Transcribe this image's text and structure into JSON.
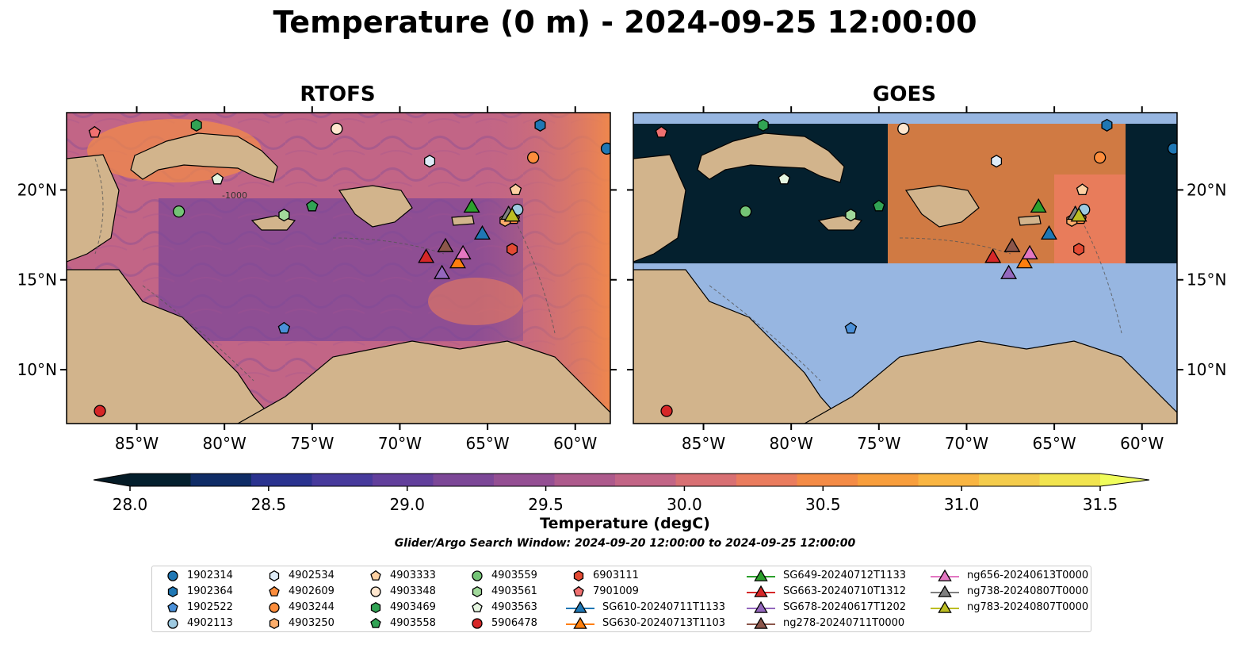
{
  "title": "Temperature (0 m) - 2024-09-25 12:00:00",
  "panels": [
    {
      "title": "RTOFS"
    },
    {
      "title": "GOES"
    }
  ],
  "lon_ticks": [
    "85°W",
    "80°W",
    "75°W",
    "70°W",
    "65°W",
    "60°W"
  ],
  "lat_ticks": [
    "10°N",
    "15°N",
    "20°N"
  ],
  "map_extent": {
    "lon": [
      -89,
      -58
    ],
    "lat": [
      7,
      24.3
    ]
  },
  "colors": {
    "land": "#d2b48c",
    "ocean_nodata": "#97b6e1",
    "cloud": "#04202e"
  },
  "colorbar": {
    "label": "Temperature (degC)",
    "ticks": [
      "28.0",
      "28.5",
      "29.0",
      "29.5",
      "30.0",
      "30.5",
      "31.0",
      "31.5"
    ],
    "range": [
      28.0,
      31.5
    ],
    "extend": "both",
    "colors": [
      "#04202e",
      "#0f2c66",
      "#2a338f",
      "#473a9c",
      "#623f9c",
      "#7c4797",
      "#944f93",
      "#ad5a8c",
      "#c26586",
      "#d87073",
      "#ea7c5e",
      "#f48b46",
      "#f89e3c",
      "#f9b542",
      "#f4cc4c",
      "#f1e44f"
    ],
    "over_color": "#f0fd5c",
    "under_color": "#051b26"
  },
  "search_window": "Glider/Argo Search Window: 2024-09-20 12:00:00 to 2024-09-25 12:00:00",
  "contour_label": "-1000",
  "legend": [
    {
      "label": "1902314",
      "marker": "circle",
      "color": "#1f77b4"
    },
    {
      "label": "1902364",
      "marker": "hexagon",
      "color": "#1f77b4"
    },
    {
      "label": "1902522",
      "marker": "pentagon",
      "color": "#4a90d9"
    },
    {
      "label": "4902113",
      "marker": "circle",
      "color": "#9ecae1"
    },
    {
      "label": "4902534",
      "marker": "hexagon",
      "color": "#deebf7"
    },
    {
      "label": "4902609",
      "marker": "pentagon",
      "color": "#fd8d3c"
    },
    {
      "label": "4903244",
      "marker": "circle",
      "color": "#fd8d3c"
    },
    {
      "label": "4903250",
      "marker": "hexagon",
      "color": "#fdae6b"
    },
    {
      "label": "4903333",
      "marker": "pentagon",
      "color": "#fdd0a2"
    },
    {
      "label": "4903348",
      "marker": "circle",
      "color": "#fee6ce"
    },
    {
      "label": "4903469",
      "marker": "hexagon",
      "color": "#31a354"
    },
    {
      "label": "4903558",
      "marker": "pentagon",
      "color": "#31a354"
    },
    {
      "label": "4903559",
      "marker": "circle",
      "color": "#74c476"
    },
    {
      "label": "4903561",
      "marker": "hexagon",
      "color": "#a1d99b"
    },
    {
      "label": "4903563",
      "marker": "pentagon",
      "color": "#e5f5e0"
    },
    {
      "label": "5906478",
      "marker": "circle",
      "color": "#d62728"
    },
    {
      "label": "6903111",
      "marker": "hexagon",
      "color": "#e34a33"
    },
    {
      "label": "7901009",
      "marker": "pentagon",
      "color": "#f07070"
    },
    {
      "label": "SG610-20240711T1133",
      "marker": "triangle-line",
      "color": "#1f77b4"
    },
    {
      "label": "SG630-20240713T1103",
      "marker": "triangle-line",
      "color": "#ff7f0e"
    },
    {
      "label": "SG649-20240712T1133",
      "marker": "triangle-line",
      "color": "#2ca02c"
    },
    {
      "label": "SG663-20240710T1312",
      "marker": "triangle-line",
      "color": "#d62728"
    },
    {
      "label": "SG678-20240617T1202",
      "marker": "triangle-line",
      "color": "#9467bd"
    },
    {
      "label": "ng278-20240711T0000",
      "marker": "triangle-line",
      "color": "#8c564b"
    },
    {
      "label": "ng656-20240613T0000",
      "marker": "triangle-line",
      "color": "#e377c2"
    },
    {
      "label": "ng738-20240807T0000",
      "marker": "triangle-line",
      "color": "#7f7f7f"
    },
    {
      "label": "ng783-20240807T0000",
      "marker": "triangle-line",
      "color": "#bcbd22"
    }
  ],
  "floats": [
    {
      "id": "1902314",
      "lon": -58.2,
      "lat": 22.3
    },
    {
      "id": "1902364",
      "lon": -62.0,
      "lat": 23.6
    },
    {
      "id": "1902522",
      "lon": -76.6,
      "lat": 12.3
    },
    {
      "id": "4902113",
      "lon": -63.3,
      "lat": 18.9
    },
    {
      "id": "4902534",
      "lon": -68.3,
      "lat": 21.6
    },
    {
      "id": "4902609",
      "lon": -63.5,
      "lat": 18.4
    },
    {
      "id": "4903244",
      "lon": -62.4,
      "lat": 21.8
    },
    {
      "id": "4903250",
      "lon": -64.0,
      "lat": 18.3
    },
    {
      "id": "4903333",
      "lon": -63.4,
      "lat": 20.0
    },
    {
      "id": "4903348",
      "lon": -73.6,
      "lat": 23.4
    },
    {
      "id": "4903469",
      "lon": -81.6,
      "lat": 23.6
    },
    {
      "id": "4903558",
      "lon": -75.0,
      "lat": 19.1
    },
    {
      "id": "4903559",
      "lon": -82.6,
      "lat": 18.8
    },
    {
      "id": "4903561",
      "lon": -76.6,
      "lat": 18.6
    },
    {
      "id": "4903563",
      "lon": -80.4,
      "lat": 20.6
    },
    {
      "id": "5906478",
      "lon": -87.1,
      "lat": 7.7
    },
    {
      "id": "6903111",
      "lon": -63.6,
      "lat": 16.7
    },
    {
      "id": "7901009",
      "lon": -87.4,
      "lat": 23.2
    }
  ],
  "gliders": [
    {
      "id": "SG610-20240711T1133",
      "lon": -65.3,
      "lat": 17.6
    },
    {
      "id": "SG630-20240713T1103",
      "lon": -66.7,
      "lat": 16.0
    },
    {
      "id": "SG649-20240712T1133",
      "lon": -65.9,
      "lat": 19.1
    },
    {
      "id": "SG663-20240710T1312",
      "lon": -68.5,
      "lat": 16.3
    },
    {
      "id": "SG678-20240617T1202",
      "lon": -67.6,
      "lat": 15.4
    },
    {
      "id": "ng278-20240711T0000",
      "lon": -67.4,
      "lat": 16.9
    },
    {
      "id": "ng656-20240613T0000",
      "lon": -66.4,
      "lat": 16.5
    },
    {
      "id": "ng738-20240807T0000",
      "lon": -63.8,
      "lat": 18.7
    },
    {
      "id": "ng783-20240807T0000",
      "lon": -63.6,
      "lat": 18.6
    }
  ]
}
